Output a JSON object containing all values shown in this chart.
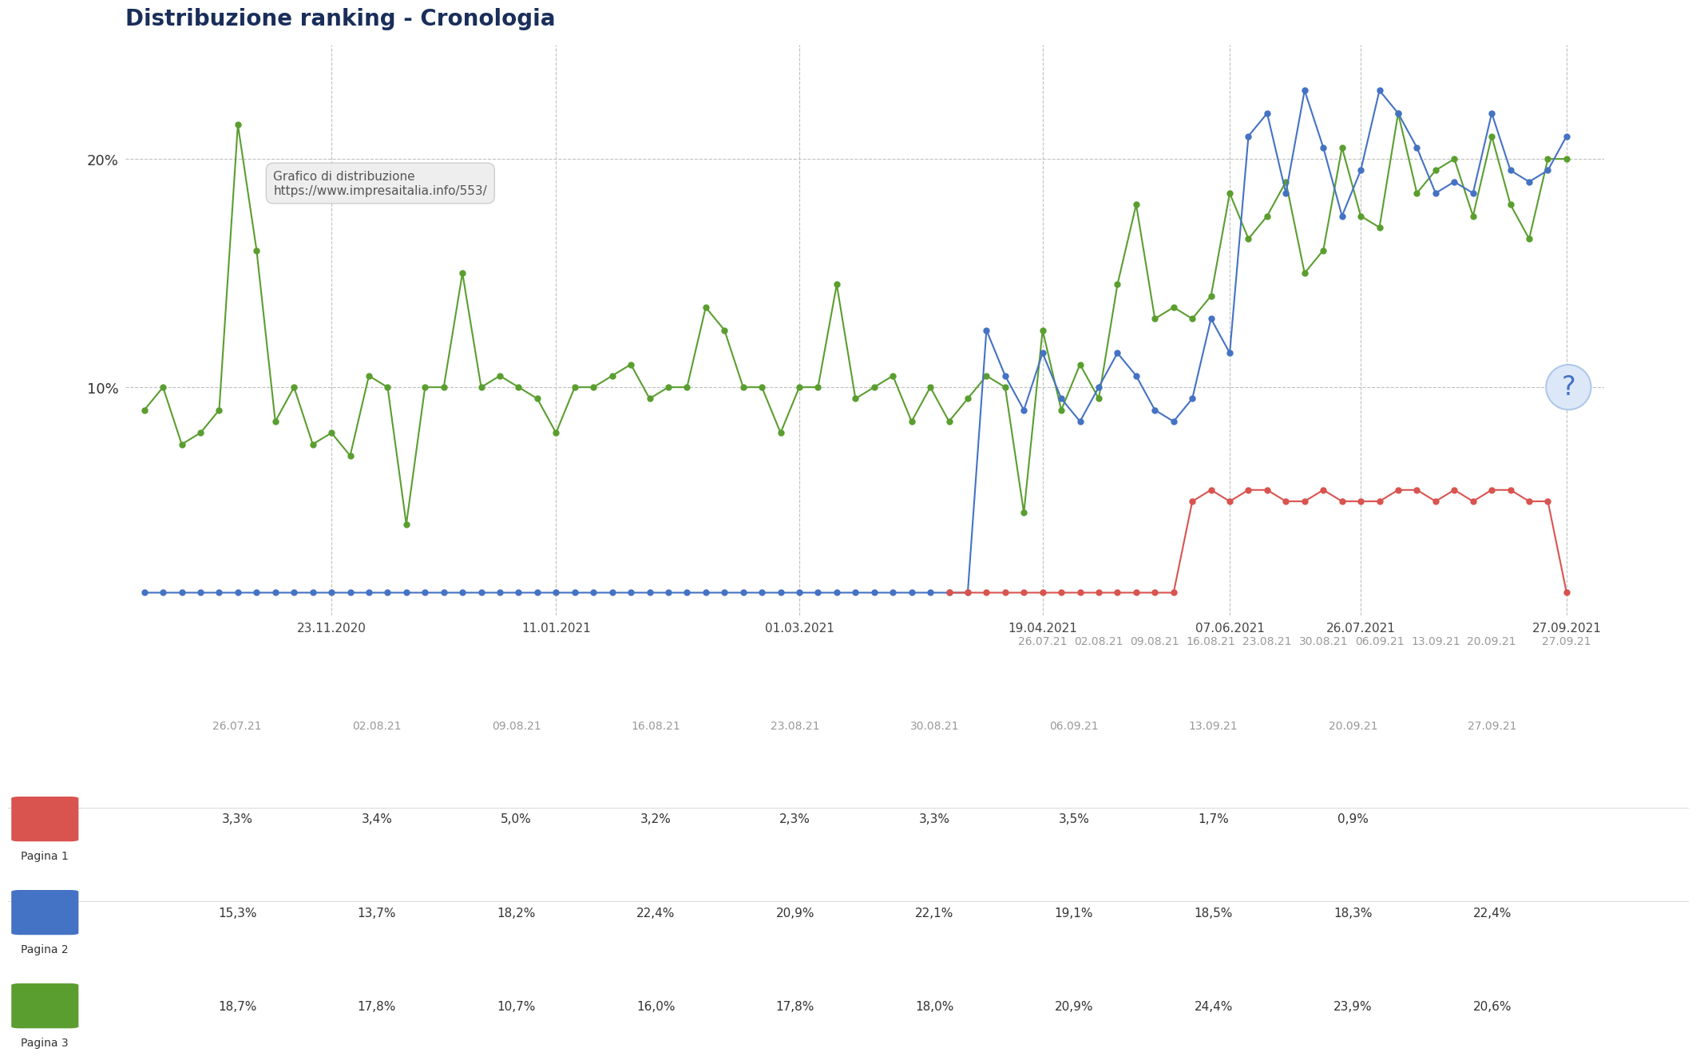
{
  "title": "Distribuzione ranking - Cronologia",
  "tooltip_title": "Grafico di distribuzione",
  "tooltip_url": "https://www.impresaitalia.info/553/",
  "bg_color": "#ffffff",
  "plot_bg_color": "#ffffff",
  "title_color": "#1a2e5a",
  "ytick_labels": [
    "10%",
    "20%"
  ],
  "ytick_values": [
    10,
    20
  ],
  "x_tick_labels": [
    "23.11.2020",
    "11.01.2021",
    "01.03.2021",
    "19.04.2021",
    "07.06.2021",
    "26.07.2021",
    "27.09.2021"
  ],
  "x_tick_positions": [
    10,
    22,
    35,
    48,
    58,
    65,
    76
  ],
  "x2_tick_labels": [
    "26.07.21",
    "02.08.21",
    "09.08.21",
    "16.08.21",
    "23.08.21",
    "30.08.21",
    "06.09.21",
    "13.09.21",
    "20.09.21",
    "27.09.21"
  ],
  "x2_tick_positions": [
    48,
    51,
    54,
    57,
    60,
    63,
    66,
    69,
    72,
    76
  ],
  "green_x": [
    0,
    1,
    2,
    3,
    4,
    5,
    6,
    7,
    8,
    9,
    10,
    11,
    12,
    13,
    14,
    15,
    16,
    17,
    18,
    19,
    20,
    21,
    22,
    23,
    24,
    25,
    26,
    27,
    28,
    29,
    30,
    31,
    32,
    33,
    34,
    35,
    36,
    37,
    38,
    39,
    40,
    41,
    42,
    43,
    44,
    45,
    46,
    47,
    48,
    49,
    50,
    51,
    52,
    53,
    54,
    55,
    56,
    57,
    58,
    59,
    60,
    61,
    62,
    63,
    64,
    65,
    66,
    67,
    68,
    69,
    70,
    71,
    72,
    73,
    74,
    75,
    76
  ],
  "green_y": [
    9.0,
    10.0,
    7.5,
    8.0,
    9.0,
    21.5,
    16.0,
    8.5,
    10.0,
    7.5,
    8.0,
    7.0,
    10.5,
    10.0,
    4.0,
    10.0,
    10.0,
    15.0,
    10.0,
    10.5,
    10.0,
    9.5,
    8.0,
    10.0,
    10.0,
    10.5,
    11.0,
    9.5,
    10.0,
    10.0,
    13.5,
    12.5,
    10.0,
    10.0,
    8.0,
    10.0,
    10.0,
    14.5,
    9.5,
    10.0,
    10.5,
    8.5,
    10.0,
    8.5,
    9.5,
    10.5,
    10.0,
    4.5,
    12.5,
    9.0,
    11.0,
    9.5,
    14.5,
    18.0,
    13.0,
    13.5,
    13.0,
    14.0,
    18.5,
    16.5,
    17.5,
    19.0,
    15.0,
    16.0,
    20.5,
    17.5,
    17.0,
    22.0,
    18.5,
    19.5,
    20.0,
    17.5,
    21.0,
    18.0,
    16.5,
    20.0,
    20.0
  ],
  "blue_x": [
    0,
    1,
    2,
    3,
    4,
    5,
    6,
    7,
    8,
    9,
    10,
    11,
    12,
    13,
    14,
    15,
    16,
    17,
    18,
    19,
    20,
    21,
    22,
    23,
    24,
    25,
    26,
    27,
    28,
    29,
    30,
    31,
    32,
    33,
    34,
    35,
    36,
    37,
    38,
    39,
    40,
    41,
    42,
    43,
    44,
    45,
    46,
    47,
    48,
    49,
    50,
    51,
    52,
    53,
    54,
    55,
    56,
    57,
    58,
    59,
    60,
    61,
    62,
    63,
    64,
    65,
    66,
    67,
    68,
    69,
    70,
    71,
    72,
    73,
    74,
    75,
    76
  ],
  "blue_y": [
    1.0,
    1.0,
    1.0,
    1.0,
    1.0,
    1.0,
    1.0,
    1.0,
    1.0,
    1.0,
    1.0,
    1.0,
    1.0,
    1.0,
    1.0,
    1.0,
    1.0,
    1.0,
    1.0,
    1.0,
    1.0,
    1.0,
    1.0,
    1.0,
    1.0,
    1.0,
    1.0,
    1.0,
    1.0,
    1.0,
    1.0,
    1.0,
    1.0,
    1.0,
    1.0,
    1.0,
    1.0,
    1.0,
    1.0,
    1.0,
    1.0,
    1.0,
    1.0,
    1.0,
    1.0,
    12.5,
    10.5,
    9.0,
    11.5,
    9.5,
    8.5,
    10.0,
    11.5,
    10.5,
    9.0,
    8.5,
    9.5,
    13.0,
    11.5,
    21.0,
    22.0,
    18.5,
    23.0,
    20.5,
    17.5,
    19.5,
    23.0,
    22.0,
    20.5,
    18.5,
    19.0,
    18.5,
    22.0,
    19.5,
    19.0,
    19.5,
    21.0
  ],
  "red_x": [
    43,
    44,
    45,
    46,
    47,
    48,
    49,
    50,
    51,
    52,
    53,
    54,
    55,
    56,
    57,
    58,
    59,
    60,
    61,
    62,
    63,
    64,
    65,
    66,
    67,
    68,
    69,
    70,
    71,
    72,
    73,
    74,
    75,
    76
  ],
  "red_y": [
    1.0,
    1.0,
    1.0,
    1.0,
    1.0,
    1.0,
    1.0,
    1.0,
    1.0,
    1.0,
    1.0,
    1.0,
    1.0,
    5.0,
    5.5,
    5.0,
    5.5,
    5.5,
    5.0,
    5.0,
    5.5,
    5.0,
    5.0,
    5.0,
    5.5,
    5.5,
    5.0,
    5.5,
    5.0,
    5.5,
    5.5,
    5.0,
    5.0,
    1.0
  ],
  "green_color": "#5a9e2f",
  "blue_color": "#4472c4",
  "red_color": "#d9534f",
  "marker_size": 5,
  "xlim": [
    -1,
    78
  ],
  "ylim": [
    0,
    25
  ],
  "table_dates": [
    "26.07.21",
    "02.08.21",
    "09.08.21",
    "16.08.21",
    "23.08.21",
    "30.08.21",
    "06.09.21",
    "13.09.21",
    "20.09.21",
    "27.09.21"
  ],
  "pagina1_vals": [
    "3,3%",
    "3,4%",
    "5,0%",
    "3,2%",
    "2,3%",
    "3,3%",
    "3,5%",
    "1,7%",
    "0,9%",
    ""
  ],
  "pagina2_vals": [
    "15,3%",
    "13,7%",
    "18,2%",
    "22,4%",
    "20,9%",
    "22,1%",
    "19,1%",
    "18,5%",
    "18,3%",
    "22,4%"
  ],
  "pagina3_vals": [
    "18,7%",
    "17,8%",
    "10,7%",
    "16,0%",
    "17,8%",
    "18,0%",
    "20,9%",
    "24,4%",
    "23,9%",
    "20,6%"
  ],
  "row_labels": [
    "Pagina 1",
    "Pagina 2",
    "Pagina 3"
  ]
}
